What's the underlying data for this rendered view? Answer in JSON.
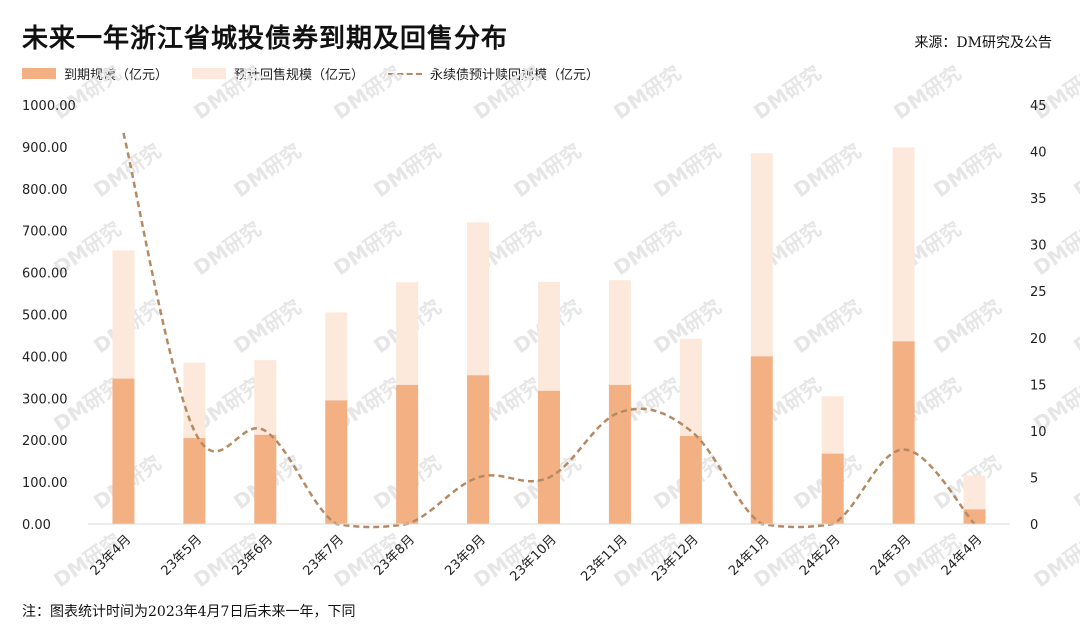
{
  "title": "未来一年浙江省城投债券到期及回售分布",
  "source": "来源：DM研究及公告",
  "note": "注：图表统计时间为2023年4月7日后未来一年，下同",
  "watermark_text": "DM研究",
  "colors": {
    "maturity": "#f2b083",
    "putback": "#fde9dc",
    "perpetual": "#b58a62"
  },
  "chart_data": {
    "type": "bar",
    "stacked": true,
    "title": "未来一年浙江省城投债券到期及回售分布",
    "categories": [
      "23年4月",
      "23年5月",
      "23年6月",
      "23年7月",
      "23年8月",
      "23年9月",
      "23年10月",
      "23年11月",
      "23年12月",
      "24年1月",
      "24年2月",
      "24年3月",
      "24年4月"
    ],
    "series": [
      {
        "name": "到期规模（亿元）",
        "type": "bar",
        "axis": "left",
        "values": [
          347,
          205,
          213,
          295,
          332,
          355,
          318,
          332,
          210,
          400,
          168,
          436,
          35
        ]
      },
      {
        "name": "预计回售规模（亿元）",
        "type": "bar",
        "axis": "left",
        "values": [
          306,
          180,
          178,
          210,
          245,
          365,
          260,
          250,
          232,
          485,
          137,
          463,
          80
        ]
      },
      {
        "name": "永续债预计赎回规模（亿元）",
        "type": "line",
        "style": "dashed",
        "axis": "right",
        "values": [
          42,
          10,
          10,
          0,
          0,
          5,
          5,
          12,
          10,
          0,
          0,
          8,
          0
        ]
      }
    ],
    "y_left": {
      "min": 0,
      "max": 1000,
      "ticks": [
        "0.00",
        "100.00",
        "200.00",
        "300.00",
        "400.00",
        "500.00",
        "600.00",
        "700.00",
        "800.00",
        "900.00",
        "1000.00"
      ]
    },
    "y_right": {
      "min": 0,
      "max": 45,
      "ticks": [
        "0",
        "5",
        "10",
        "15",
        "20",
        "25",
        "30",
        "35",
        "40",
        "45"
      ]
    },
    "grid": false,
    "legend": "top-left"
  }
}
